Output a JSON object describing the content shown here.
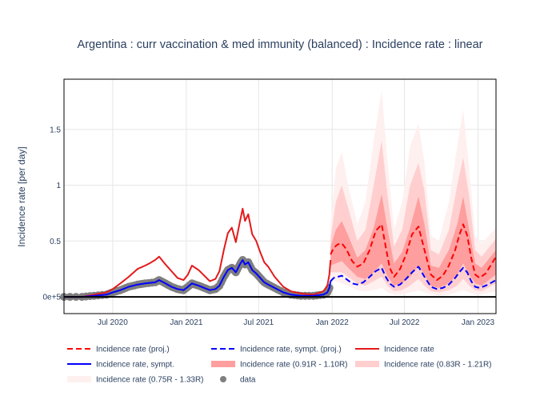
{
  "chart_data": {
    "type": "line",
    "title": "Argentina : curr vaccination & med immunity (balanced) : Incidence rate : linear",
    "xlabel": "",
    "ylabel": "Incidence rate [per day]",
    "x_range": [
      "2020-03-01",
      "2023-02-15"
    ],
    "ylim": [
      -0.15,
      1.95
    ],
    "x_ticks": [
      {
        "date": "2020-07-01",
        "label": "Jul 2020"
      },
      {
        "date": "2021-01-01",
        "label": "Jan 2021"
      },
      {
        "date": "2021-07-01",
        "label": "Jul 2021"
      },
      {
        "date": "2022-01-01",
        "label": "Jan 2022"
      },
      {
        "date": "2022-07-01",
        "label": "Jul 2022"
      },
      {
        "date": "2023-01-01",
        "label": "Jan 2023"
      }
    ],
    "y_ticks": [
      {
        "value": 0,
        "label": "0e+5"
      },
      {
        "value": 0.5,
        "label": "0.5"
      },
      {
        "value": 1,
        "label": "1"
      },
      {
        "value": 1.5,
        "label": "1.5"
      }
    ],
    "grid": true,
    "legend_position": "bottom",
    "colors": {
      "proj": "#ff0000",
      "sympt_proj": "#0000ff",
      "incidence": "#e31a1c",
      "sympt": "#0000ff",
      "band_inner": "#ff9e9e",
      "band_mid": "#ffcfcf",
      "band_outer": "#fff0f0",
      "data": "#7f7f7f",
      "zero_line": "#000000"
    },
    "series": [
      {
        "name": "Incidence rate",
        "style": "solid",
        "x": [
          "2020-03-01",
          "2020-04-15",
          "2020-05-15",
          "2020-06-15",
          "2020-07-01",
          "2020-07-20",
          "2020-08-10",
          "2020-09-01",
          "2020-09-20",
          "2020-10-01",
          "2020-10-15",
          "2020-10-25",
          "2020-11-10",
          "2020-11-25",
          "2020-12-10",
          "2020-12-25",
          "2021-01-05",
          "2021-01-15",
          "2021-02-01",
          "2021-02-15",
          "2021-03-01",
          "2021-03-15",
          "2021-03-25",
          "2021-04-05",
          "2021-04-15",
          "2021-04-25",
          "2021-05-05",
          "2021-05-15",
          "2021-05-22",
          "2021-05-28",
          "2021-06-05",
          "2021-06-15",
          "2021-06-25",
          "2021-07-05",
          "2021-07-15",
          "2021-07-25",
          "2021-08-10",
          "2021-09-01",
          "2021-09-20",
          "2021-10-15",
          "2021-11-15",
          "2021-12-10",
          "2021-12-20",
          "2021-12-25",
          "2021-12-28"
        ],
        "y": [
          0.0,
          0.0,
          0.02,
          0.04,
          0.07,
          0.12,
          0.18,
          0.25,
          0.28,
          0.3,
          0.33,
          0.36,
          0.29,
          0.23,
          0.17,
          0.15,
          0.2,
          0.28,
          0.24,
          0.19,
          0.14,
          0.16,
          0.23,
          0.42,
          0.57,
          0.62,
          0.49,
          0.67,
          0.79,
          0.68,
          0.74,
          0.56,
          0.5,
          0.4,
          0.31,
          0.27,
          0.18,
          0.09,
          0.05,
          0.03,
          0.02,
          0.05,
          0.1,
          0.2,
          0.33
        ]
      },
      {
        "name": "Incidence rate, sympt.",
        "style": "solid",
        "x": [
          "2020-03-01",
          "2020-04-15",
          "2020-05-15",
          "2020-06-15",
          "2020-07-01",
          "2020-07-20",
          "2020-08-10",
          "2020-09-01",
          "2020-09-20",
          "2020-10-15",
          "2020-10-25",
          "2020-11-10",
          "2020-11-25",
          "2020-12-10",
          "2020-12-25",
          "2021-01-05",
          "2021-01-15",
          "2021-02-01",
          "2021-02-15",
          "2021-03-01",
          "2021-03-15",
          "2021-03-25",
          "2021-04-05",
          "2021-04-15",
          "2021-04-25",
          "2021-05-05",
          "2021-05-15",
          "2021-05-22",
          "2021-05-28",
          "2021-06-05",
          "2021-06-15",
          "2021-06-25",
          "2021-07-05",
          "2021-07-15",
          "2021-07-25",
          "2021-08-10",
          "2021-09-01",
          "2021-09-20",
          "2021-10-15",
          "2021-11-15",
          "2021-12-10",
          "2021-12-20",
          "2021-12-25",
          "2021-12-28"
        ],
        "y": [
          0.0,
          0.0,
          0.01,
          0.02,
          0.04,
          0.06,
          0.09,
          0.11,
          0.12,
          0.13,
          0.15,
          0.12,
          0.09,
          0.07,
          0.06,
          0.09,
          0.12,
          0.1,
          0.08,
          0.06,
          0.07,
          0.1,
          0.18,
          0.24,
          0.26,
          0.22,
          0.29,
          0.33,
          0.29,
          0.31,
          0.24,
          0.21,
          0.17,
          0.13,
          0.11,
          0.08,
          0.04,
          0.02,
          0.01,
          0.01,
          0.02,
          0.04,
          0.08,
          0.14
        ]
      },
      {
        "name": "Incidence rate (proj.)",
        "style": "dash",
        "x": [
          "2021-12-28",
          "2022-01-05",
          "2022-01-15",
          "2022-01-25",
          "2022-02-05",
          "2022-02-20",
          "2022-03-05",
          "2022-03-20",
          "2022-04-05",
          "2022-04-20",
          "2022-05-05",
          "2022-05-15",
          "2022-05-25",
          "2022-06-05",
          "2022-06-20",
          "2022-07-05",
          "2022-07-20",
          "2022-08-05",
          "2022-08-20",
          "2022-09-05",
          "2022-09-20",
          "2022-10-05",
          "2022-10-20",
          "2022-11-05",
          "2022-11-15",
          "2022-11-25",
          "2022-12-05",
          "2022-12-15",
          "2022-12-25",
          "2023-01-05",
          "2023-01-20",
          "2023-02-05",
          "2023-02-15"
        ],
        "y": [
          0.38,
          0.44,
          0.47,
          0.48,
          0.43,
          0.32,
          0.27,
          0.3,
          0.42,
          0.59,
          0.65,
          0.45,
          0.26,
          0.18,
          0.25,
          0.38,
          0.56,
          0.63,
          0.42,
          0.2,
          0.15,
          0.19,
          0.28,
          0.42,
          0.55,
          0.65,
          0.55,
          0.35,
          0.2,
          0.17,
          0.21,
          0.3,
          0.36
        ]
      },
      {
        "name": "Incidence rate, sympt. (proj.)",
        "style": "dash",
        "x": [
          "2021-12-28",
          "2022-01-05",
          "2022-01-15",
          "2022-01-25",
          "2022-02-05",
          "2022-02-20",
          "2022-03-05",
          "2022-03-20",
          "2022-04-05",
          "2022-04-20",
          "2022-05-05",
          "2022-05-15",
          "2022-05-25",
          "2022-06-05",
          "2022-06-20",
          "2022-07-05",
          "2022-07-20",
          "2022-08-05",
          "2022-08-20",
          "2022-09-05",
          "2022-09-20",
          "2022-10-05",
          "2022-10-20",
          "2022-11-05",
          "2022-11-15",
          "2022-11-25",
          "2022-12-05",
          "2022-12-15",
          "2022-12-25",
          "2023-01-05",
          "2023-01-20",
          "2023-02-05",
          "2023-02-15"
        ],
        "y": [
          0.14,
          0.17,
          0.18,
          0.19,
          0.16,
          0.12,
          0.11,
          0.13,
          0.18,
          0.23,
          0.26,
          0.18,
          0.12,
          0.09,
          0.11,
          0.16,
          0.22,
          0.27,
          0.18,
          0.09,
          0.07,
          0.08,
          0.11,
          0.17,
          0.22,
          0.26,
          0.22,
          0.14,
          0.09,
          0.08,
          0.1,
          0.13,
          0.15
        ]
      },
      {
        "name": "Incidence rate (0.91R - 1.10R)",
        "style": "band",
        "x": [
          "2021-12-28",
          "2022-01-10",
          "2022-01-25",
          "2022-02-10",
          "2022-03-05",
          "2022-03-25",
          "2022-04-15",
          "2022-05-05",
          "2022-05-20",
          "2022-06-05",
          "2022-06-25",
          "2022-07-15",
          "2022-08-05",
          "2022-08-20",
          "2022-09-05",
          "2022-09-25",
          "2022-10-20",
          "2022-11-10",
          "2022-11-25",
          "2022-12-10",
          "2022-12-25",
          "2023-01-10",
          "2023-02-15"
        ],
        "lower": [
          0.28,
          0.3,
          0.32,
          0.26,
          0.18,
          0.16,
          0.22,
          0.3,
          0.18,
          0.1,
          0.12,
          0.18,
          0.28,
          0.2,
          0.1,
          0.08,
          0.12,
          0.2,
          0.3,
          0.2,
          0.12,
          0.1,
          0.2
        ],
        "upper": [
          0.45,
          0.6,
          0.68,
          0.55,
          0.35,
          0.42,
          0.62,
          0.92,
          0.6,
          0.3,
          0.4,
          0.62,
          0.9,
          0.65,
          0.28,
          0.26,
          0.42,
          0.65,
          0.9,
          0.6,
          0.3,
          0.26,
          0.42
        ]
      },
      {
        "name": "Incidence rate (0.83R - 1.21R)",
        "style": "band",
        "x": [
          "2021-12-28",
          "2022-01-10",
          "2022-01-25",
          "2022-02-10",
          "2022-03-05",
          "2022-03-25",
          "2022-04-15",
          "2022-05-05",
          "2022-05-20",
          "2022-06-05",
          "2022-06-25",
          "2022-07-15",
          "2022-08-05",
          "2022-08-20",
          "2022-09-05",
          "2022-09-25",
          "2022-10-20",
          "2022-11-10",
          "2022-11-25",
          "2022-12-10",
          "2022-12-25",
          "2023-01-10",
          "2023-02-15"
        ],
        "lower": [
          0.22,
          0.22,
          0.22,
          0.18,
          0.12,
          0.1,
          0.14,
          0.18,
          0.1,
          0.05,
          0.06,
          0.1,
          0.16,
          0.1,
          0.05,
          0.04,
          0.06,
          0.1,
          0.16,
          0.1,
          0.06,
          0.05,
          0.12
        ],
        "upper": [
          0.52,
          0.85,
          1.0,
          0.8,
          0.5,
          0.6,
          1.0,
          1.4,
          0.9,
          0.45,
          0.6,
          1.0,
          1.2,
          0.95,
          0.42,
          0.38,
          0.6,
          1.0,
          1.25,
          0.9,
          0.42,
          0.36,
          0.52
        ]
      },
      {
        "name": "Incidence rate (0.75R - 1.33R)",
        "style": "band",
        "x": [
          "2021-12-28",
          "2022-01-10",
          "2022-01-25",
          "2022-02-10",
          "2022-03-05",
          "2022-03-25",
          "2022-04-15",
          "2022-05-05",
          "2022-05-20",
          "2022-06-05",
          "2022-06-25",
          "2022-07-15",
          "2022-08-05",
          "2022-08-20",
          "2022-09-05",
          "2022-09-25",
          "2022-10-20",
          "2022-11-10",
          "2022-11-25",
          "2022-12-10",
          "2022-12-25",
          "2023-01-10",
          "2023-02-15"
        ],
        "lower": [
          0.15,
          0.14,
          0.12,
          0.1,
          0.06,
          0.05,
          0.06,
          0.08,
          0.04,
          0.02,
          0.02,
          0.04,
          0.06,
          0.04,
          0.02,
          0.01,
          0.02,
          0.04,
          0.06,
          0.04,
          0.02,
          0.02,
          0.05
        ],
        "upper": [
          0.62,
          1.15,
          1.3,
          1.0,
          0.65,
          0.85,
          1.4,
          1.85,
          1.2,
          0.6,
          0.85,
          1.35,
          1.55,
          1.2,
          0.55,
          0.5,
          0.85,
          1.35,
          1.68,
          1.15,
          0.55,
          0.48,
          0.62
        ]
      },
      {
        "name": "data",
        "style": "markers",
        "x": [
          "2020-03-01",
          "2020-04-15",
          "2020-05-15",
          "2020-06-15",
          "2020-07-01",
          "2020-07-20",
          "2020-08-10",
          "2020-09-01",
          "2020-09-20",
          "2020-10-15",
          "2020-10-25",
          "2020-11-10",
          "2020-11-25",
          "2020-12-10",
          "2020-12-25",
          "2021-01-05",
          "2021-01-15",
          "2021-02-01",
          "2021-02-15",
          "2021-03-01",
          "2021-03-15",
          "2021-03-25",
          "2021-04-05",
          "2021-04-15",
          "2021-04-25",
          "2021-05-05",
          "2021-05-15",
          "2021-05-22",
          "2021-05-28",
          "2021-06-05",
          "2021-06-15",
          "2021-06-25",
          "2021-07-05",
          "2021-07-15",
          "2021-07-25",
          "2021-08-10",
          "2021-09-01",
          "2021-09-20",
          "2021-10-15",
          "2021-11-15",
          "2021-12-10",
          "2021-12-20",
          "2021-12-25"
        ],
        "y": [
          0.0,
          0.0,
          0.01,
          0.02,
          0.04,
          0.06,
          0.09,
          0.11,
          0.12,
          0.13,
          0.15,
          0.12,
          0.09,
          0.07,
          0.06,
          0.09,
          0.12,
          0.1,
          0.08,
          0.06,
          0.07,
          0.1,
          0.18,
          0.24,
          0.26,
          0.22,
          0.29,
          0.33,
          0.29,
          0.31,
          0.24,
          0.21,
          0.17,
          0.13,
          0.11,
          0.08,
          0.04,
          0.02,
          0.01,
          0.01,
          0.02,
          0.04,
          0.08
        ]
      }
    ],
    "legend": [
      {
        "label": "Incidence rate (proj.)",
        "kind": "dash",
        "color": "#ff0000"
      },
      {
        "label": "Incidence rate, sympt. (proj.)",
        "kind": "dash",
        "color": "#0000ff"
      },
      {
        "label": "Incidence rate",
        "kind": "line",
        "color": "#e31a1c"
      },
      {
        "label": "Incidence rate, sympt.",
        "kind": "line",
        "color": "#0000ff"
      },
      {
        "label": "Incidence rate (0.91R - 1.10R)",
        "kind": "band",
        "color": "#ff9e9e"
      },
      {
        "label": "Incidence rate (0.83R - 1.21R)",
        "kind": "band",
        "color": "#ffcfcf"
      },
      {
        "label": "Incidence rate (0.75R - 1.33R)",
        "kind": "band",
        "color": "#fff0f0"
      },
      {
        "label": "data",
        "kind": "marker",
        "color": "#7f7f7f"
      }
    ]
  }
}
